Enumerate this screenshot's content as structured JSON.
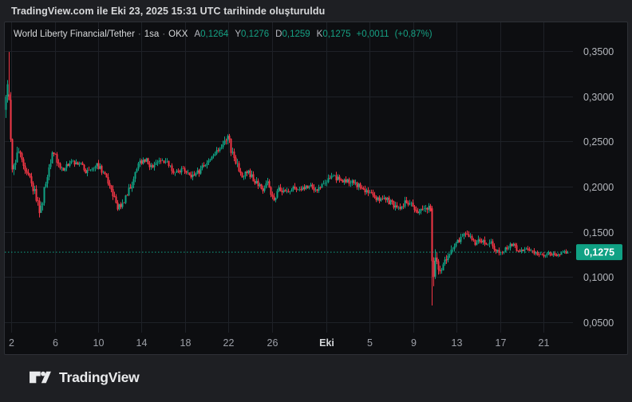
{
  "header": {
    "text": "TradingView.com ile Eki 23, 2025 15:31 UTC tarihinde oluşturuldu"
  },
  "footer": {
    "brand": "TradingView"
  },
  "legend": {
    "symbol": "World Liberty Financial/Tether",
    "separator": "·",
    "interval": "1sa",
    "exchange": "OKX",
    "ohlc": [
      {
        "key": "A",
        "value": "0,1264"
      },
      {
        "key": "Y",
        "value": "0,1276"
      },
      {
        "key": "D",
        "value": "0,1259"
      },
      {
        "key": "K",
        "value": "0,1275"
      }
    ],
    "change": "+0,0011",
    "change_pct": "(+0,87%)"
  },
  "colors": {
    "up": "#10a184",
    "down": "#f23645",
    "grid": "#1e2127",
    "price_text": "#b4b7bd",
    "time_text": "#9da0a8",
    "time_text_major": "#d5d7da",
    "badge_bg": "#10a184",
    "badge_text": "#ffffff",
    "chart_bg": "#0d0e11"
  },
  "price_scale": {
    "labels": [
      {
        "text": "0,3500",
        "value": 0.35
      },
      {
        "text": "0,3000",
        "value": 0.3
      },
      {
        "text": "0,2500",
        "value": 0.25
      },
      {
        "text": "0,2000",
        "value": 0.2
      },
      {
        "text": "0,1500",
        "value": 0.15
      },
      {
        "text": "0,1000",
        "value": 0.1
      },
      {
        "text": "0,0500",
        "value": 0.05
      }
    ],
    "current": {
      "text": "0,1275",
      "value": 0.1275
    }
  },
  "time_scale": {
    "ticks": [
      {
        "label": "2",
        "day": 1
      },
      {
        "label": "6",
        "day": 5
      },
      {
        "label": "10",
        "day": 9
      },
      {
        "label": "14",
        "day": 13
      },
      {
        "label": "18",
        "day": 17
      },
      {
        "label": "22",
        "day": 21
      },
      {
        "label": "26",
        "day": 25
      },
      {
        "label": "Eki",
        "day": 30,
        "major": true
      },
      {
        "label": "5",
        "day": 34
      },
      {
        "label": "9",
        "day": 38
      },
      {
        "label": "13",
        "day": 42
      },
      {
        "label": "17",
        "day": 46
      },
      {
        "label": "21",
        "day": 50
      }
    ]
  },
  "chart_data": {
    "type": "candlestick",
    "title": "World Liberty Financial/Tether",
    "interval": "1sa",
    "exchange": "OKX",
    "open_label": "A 0,1264",
    "high_label": "Y 0,1276",
    "low_label": "D 0,1259",
    "close_label": "K 0,1275",
    "change_label": "+0,0011 (+0,87%)",
    "current_price": 0.1275,
    "ylim": [
      0.05,
      0.35
    ],
    "x_axis_month_shown": "Eki",
    "note": "keyframes are [days_since_chart_start, approx_price, approx_volatility] read off the plot",
    "events": [
      {
        "name": "opening-spike",
        "t": 0.77,
        "high": 0.349,
        "open": 0.302,
        "close": 0.296
      },
      {
        "name": "flash-crash",
        "t": 39.78,
        "low": 0.0685,
        "open": 0.176,
        "close": 0.118
      }
    ],
    "keyframes": [
      [
        0.4,
        0.285,
        0.01
      ],
      [
        0.62,
        0.315,
        0.012
      ],
      [
        0.77,
        0.298,
        0.014
      ],
      [
        0.92,
        0.252,
        0.01
      ],
      [
        1.07,
        0.218,
        0.008
      ],
      [
        1.36,
        0.228,
        0.007
      ],
      [
        1.58,
        0.246,
        0.008
      ],
      [
        2.02,
        0.223,
        0.006
      ],
      [
        2.53,
        0.217,
        0.005
      ],
      [
        3.05,
        0.196,
        0.006
      ],
      [
        3.64,
        0.172,
        0.006
      ],
      [
        4.08,
        0.2,
        0.006
      ],
      [
        4.52,
        0.222,
        0.005
      ],
      [
        4.81,
        0.242,
        0.006
      ],
      [
        5.25,
        0.222,
        0.005
      ],
      [
        5.84,
        0.221,
        0.004
      ],
      [
        6.58,
        0.228,
        0.004
      ],
      [
        7.31,
        0.225,
        0.004
      ],
      [
        8.05,
        0.215,
        0.004
      ],
      [
        8.93,
        0.224,
        0.004
      ],
      [
        9.66,
        0.212,
        0.004
      ],
      [
        10.25,
        0.196,
        0.005
      ],
      [
        10.84,
        0.176,
        0.005
      ],
      [
        11.43,
        0.186,
        0.004
      ],
      [
        12.01,
        0.202,
        0.004
      ],
      [
        12.6,
        0.222,
        0.004
      ],
      [
        13.19,
        0.232,
        0.005
      ],
      [
        13.78,
        0.222,
        0.004
      ],
      [
        14.51,
        0.226,
        0.004
      ],
      [
        15.25,
        0.228,
        0.004
      ],
      [
        15.98,
        0.217,
        0.004
      ],
      [
        16.72,
        0.219,
        0.004
      ],
      [
        17.45,
        0.212,
        0.004
      ],
      [
        18.19,
        0.216,
        0.004
      ],
      [
        18.77,
        0.226,
        0.004
      ],
      [
        19.36,
        0.232,
        0.004
      ],
      [
        19.95,
        0.24,
        0.004
      ],
      [
        20.54,
        0.25,
        0.005
      ],
      [
        20.9,
        0.256,
        0.005
      ],
      [
        21.27,
        0.238,
        0.006
      ],
      [
        21.71,
        0.225,
        0.005
      ],
      [
        22.22,
        0.212,
        0.004
      ],
      [
        22.81,
        0.216,
        0.004
      ],
      [
        23.47,
        0.205,
        0.004
      ],
      [
        24.06,
        0.197,
        0.004
      ],
      [
        24.58,
        0.203,
        0.004
      ],
      [
        25.09,
        0.186,
        0.004
      ],
      [
        25.68,
        0.198,
        0.004
      ],
      [
        26.27,
        0.193,
        0.004
      ],
      [
        26.93,
        0.199,
        0.004
      ],
      [
        27.59,
        0.195,
        0.004
      ],
      [
        28.32,
        0.202,
        0.004
      ],
      [
        29.06,
        0.197,
        0.004
      ],
      [
        29.87,
        0.205,
        0.004
      ],
      [
        30.53,
        0.211,
        0.004
      ],
      [
        31.26,
        0.208,
        0.004
      ],
      [
        32.0,
        0.205,
        0.004
      ],
      [
        32.73,
        0.203,
        0.004
      ],
      [
        33.47,
        0.196,
        0.004
      ],
      [
        34.2,
        0.195,
        0.004
      ],
      [
        34.72,
        0.185,
        0.004
      ],
      [
        35.3,
        0.188,
        0.004
      ],
      [
        36.04,
        0.181,
        0.004
      ],
      [
        36.7,
        0.175,
        0.004
      ],
      [
        37.29,
        0.184,
        0.004
      ],
      [
        37.88,
        0.179,
        0.004
      ],
      [
        38.46,
        0.17,
        0.004
      ],
      [
        38.98,
        0.176,
        0.004
      ],
      [
        39.49,
        0.178,
        0.005
      ],
      [
        39.71,
        0.152,
        0.009
      ],
      [
        39.86,
        0.11,
        0.012
      ],
      [
        40.15,
        0.121,
        0.008
      ],
      [
        40.44,
        0.106,
        0.006
      ],
      [
        40.81,
        0.116,
        0.005
      ],
      [
        41.25,
        0.126,
        0.005
      ],
      [
        41.69,
        0.131,
        0.004
      ],
      [
        42.21,
        0.141,
        0.004
      ],
      [
        42.72,
        0.148,
        0.004
      ],
      [
        43.16,
        0.144,
        0.004
      ],
      [
        43.6,
        0.137,
        0.004
      ],
      [
        44.04,
        0.143,
        0.004
      ],
      [
        44.56,
        0.136,
        0.004
      ],
      [
        45.0,
        0.141,
        0.004
      ],
      [
        45.51,
        0.131,
        0.004
      ],
      [
        46.1,
        0.128,
        0.003
      ],
      [
        46.62,
        0.133,
        0.003
      ],
      [
        47.13,
        0.136,
        0.003
      ],
      [
        47.72,
        0.128,
        0.003
      ],
      [
        48.31,
        0.131,
        0.003
      ],
      [
        48.9,
        0.128,
        0.003
      ],
      [
        49.41,
        0.126,
        0.003
      ],
      [
        49.93,
        0.122,
        0.003
      ],
      [
        50.51,
        0.127,
        0.0025
      ],
      [
        51.03,
        0.124,
        0.0025
      ],
      [
        51.54,
        0.126,
        0.0025
      ],
      [
        51.98,
        0.1275,
        0.002
      ]
    ]
  }
}
